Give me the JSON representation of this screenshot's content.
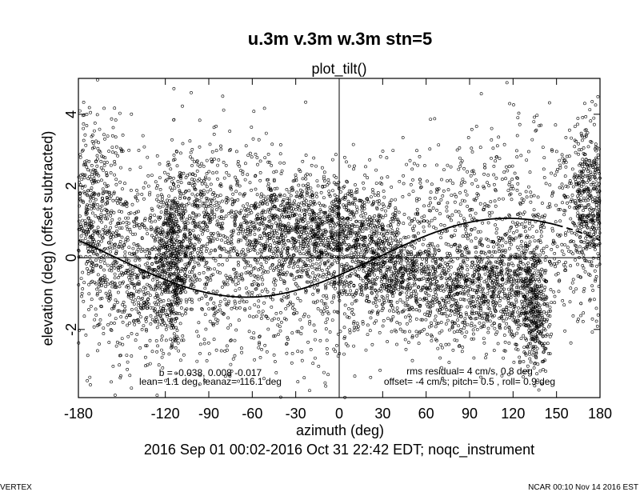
{
  "chart_data": {
    "type": "scatter",
    "title": "u.3m v.3m w.3m stn=5",
    "subtitle": "plot_tilt()",
    "xlabel": "azimuth (deg)",
    "ylabel": "elevation (deg)   (offset subtracted)",
    "xlim": [
      -180,
      180
    ],
    "ylim": [
      -3.9,
      5.0
    ],
    "xticks": [
      -180,
      -120,
      -90,
      -60,
      -30,
      0,
      30,
      60,
      90,
      120,
      150,
      180
    ],
    "yticks": [
      -2,
      0,
      2,
      4
    ],
    "grid": false,
    "reference_lines": {
      "horizontal_at": 0,
      "vertical_at": 0
    },
    "fit_curve": {
      "description": "sinusoidal tilt fit, elevation = lean*cos(azimuth - leanaz)",
      "lean_deg": 1.1,
      "leanaz_deg": 116.1,
      "style_left_of_150": "solid",
      "style_right_of_150": "dashed"
    },
    "point_clouds": [
      {
        "az": -170,
        "el": 1.3,
        "spread_az": 10,
        "spread_el": 1.3
      },
      {
        "az": -140,
        "el": -0.5,
        "spread_az": 15,
        "spread_el": 1.2
      },
      {
        "az": -115,
        "el": -0.2,
        "spread_az": 6,
        "spread_el": 1.1
      },
      {
        "az": -100,
        "el": 1.0,
        "spread_az": 14,
        "spread_el": 1.2
      },
      {
        "az": -60,
        "el": 0.9,
        "spread_az": 18,
        "spread_el": 1.1
      },
      {
        "az": -32,
        "el": 0.9,
        "spread_az": 15,
        "spread_el": 0.7
      },
      {
        "az": -8,
        "el": 0.7,
        "spread_az": 12,
        "spread_el": 0.8
      },
      {
        "az": 20,
        "el": 0.2,
        "spread_az": 12,
        "spread_el": 0.8
      },
      {
        "az": 48,
        "el": -0.6,
        "spread_az": 14,
        "spread_el": 0.7
      },
      {
        "az": 85,
        "el": -1.0,
        "spread_az": 16,
        "spread_el": 0.7
      },
      {
        "az": 115,
        "el": -0.8,
        "spread_az": 14,
        "spread_el": 0.9
      },
      {
        "az": 135,
        "el": -1.5,
        "spread_az": 5,
        "spread_el": 1.0
      },
      {
        "az": 172,
        "el": 1.8,
        "spread_az": 7,
        "spread_el": 1.0
      }
    ],
    "annotations": {
      "b_line": "b = -0.038, 0.008 -0.017",
      "lean_line": "lean= 1.1 deg, leanaz= 116.1 deg",
      "rms_line": "rms residual= 4 cm/s, 0.8 deg",
      "offset_line": "offset= -4 cm/s; pitch= 0.5 , roll= 0.9 deg"
    },
    "date_range": "2016 Sep 01 00:02-2016 Oct 31 22:42 EDT; noqc_instrument"
  },
  "footer": {
    "left": "VERTEX",
    "right": "NCAR 00:10 Nov 14 2016 EST"
  }
}
